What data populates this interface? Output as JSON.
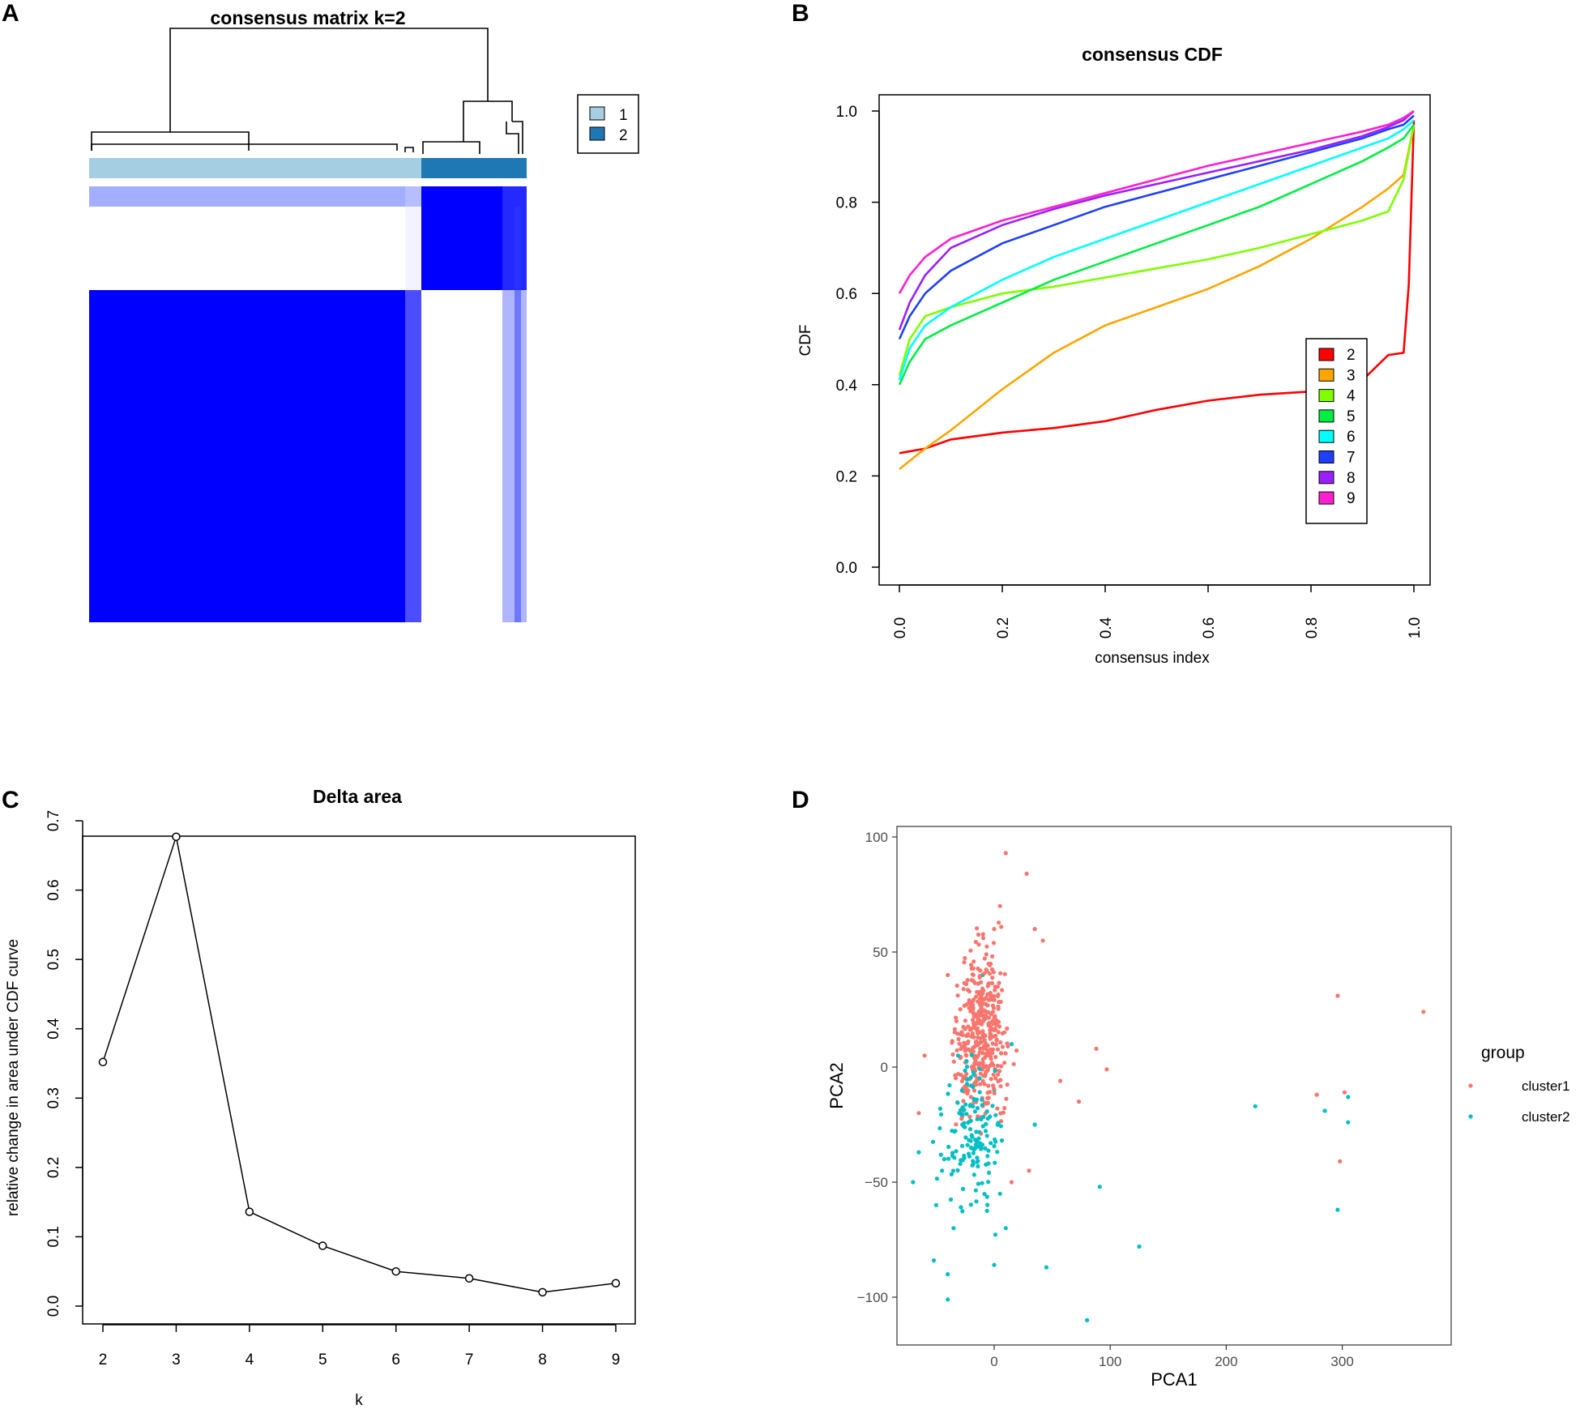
{
  "panels": {
    "A": {
      "letter": "A",
      "title": "consensus matrix k=2",
      "legend": [
        "1",
        "2"
      ],
      "colors": {
        "cluster1": "#a6cee3",
        "cluster2": "#1f78b4",
        "high": "#0000ff",
        "low": "#ffffff"
      }
    },
    "B": {
      "letter": "B"
    },
    "C": {
      "letter": "C"
    },
    "D": {
      "letter": "D"
    }
  },
  "chart_data": [
    {
      "id": "A",
      "type": "heatmap",
      "title": "consensus matrix k=2",
      "legend": [
        {
          "label": "1",
          "color": "#a6cee3"
        },
        {
          "label": "2",
          "color": "#1f78b4"
        }
      ],
      "clusters": [
        {
          "name": "1",
          "fraction": 0.76
        },
        {
          "name": "2",
          "fraction": 0.24
        }
      ],
      "consensus_values": [
        [
          1,
          0
        ],
        [
          0,
          1
        ]
      ]
    },
    {
      "id": "B",
      "type": "line",
      "title": "consensus CDF",
      "xlabel": "consensus index",
      "ylabel": "CDF",
      "xlim": [
        0,
        1
      ],
      "ylim": [
        0,
        1
      ],
      "xticks": [
        "0.0",
        "0.2",
        "0.4",
        "0.6",
        "0.8",
        "1.0"
      ],
      "yticks": [
        "0.0",
        "0.2",
        "0.4",
        "0.6",
        "0.8",
        "1.0"
      ],
      "legend_position": "bottom-right",
      "series": [
        {
          "name": "2",
          "color": "#ff0000",
          "x": [
            0,
            0.05,
            0.1,
            0.2,
            0.3,
            0.4,
            0.5,
            0.6,
            0.7,
            0.8,
            0.9,
            0.95,
            0.98,
            0.99,
            1.0
          ],
          "y": [
            0.25,
            0.26,
            0.28,
            0.295,
            0.305,
            0.32,
            0.345,
            0.365,
            0.378,
            0.385,
            0.41,
            0.465,
            0.47,
            0.62,
            0.98
          ]
        },
        {
          "name": "3",
          "color": "#ffa500",
          "x": [
            0,
            0.05,
            0.1,
            0.2,
            0.3,
            0.4,
            0.5,
            0.6,
            0.7,
            0.8,
            0.9,
            0.95,
            0.98,
            1.0
          ],
          "y": [
            0.215,
            0.26,
            0.3,
            0.39,
            0.47,
            0.53,
            0.57,
            0.61,
            0.66,
            0.72,
            0.79,
            0.83,
            0.86,
            0.97
          ]
        },
        {
          "name": "4",
          "color": "#7fff00",
          "x": [
            0,
            0.02,
            0.05,
            0.1,
            0.2,
            0.3,
            0.4,
            0.5,
            0.6,
            0.7,
            0.8,
            0.9,
            0.95,
            0.98,
            1.0
          ],
          "y": [
            0.42,
            0.5,
            0.55,
            0.57,
            0.6,
            0.615,
            0.635,
            0.655,
            0.675,
            0.7,
            0.73,
            0.76,
            0.78,
            0.85,
            0.97
          ]
        },
        {
          "name": "5",
          "color": "#00ee44",
          "x": [
            0,
            0.02,
            0.05,
            0.1,
            0.2,
            0.3,
            0.4,
            0.5,
            0.6,
            0.7,
            0.8,
            0.9,
            0.95,
            0.98,
            1.0
          ],
          "y": [
            0.4,
            0.45,
            0.5,
            0.53,
            0.58,
            0.63,
            0.67,
            0.71,
            0.75,
            0.79,
            0.84,
            0.89,
            0.92,
            0.94,
            0.97
          ]
        },
        {
          "name": "6",
          "color": "#00ffff",
          "x": [
            0,
            0.02,
            0.05,
            0.1,
            0.2,
            0.3,
            0.4,
            0.5,
            0.6,
            0.7,
            0.8,
            0.9,
            0.95,
            0.98,
            1.0
          ],
          "y": [
            0.41,
            0.48,
            0.53,
            0.57,
            0.63,
            0.68,
            0.72,
            0.76,
            0.8,
            0.84,
            0.88,
            0.92,
            0.94,
            0.96,
            0.98
          ]
        },
        {
          "name": "7",
          "color": "#1f3fff",
          "x": [
            0,
            0.02,
            0.05,
            0.1,
            0.2,
            0.3,
            0.4,
            0.5,
            0.6,
            0.7,
            0.8,
            0.9,
            0.95,
            0.98,
            1.0
          ],
          "y": [
            0.5,
            0.55,
            0.6,
            0.65,
            0.71,
            0.75,
            0.79,
            0.82,
            0.85,
            0.88,
            0.91,
            0.94,
            0.96,
            0.97,
            0.99
          ]
        },
        {
          "name": "8",
          "color": "#9a1fff",
          "x": [
            0,
            0.02,
            0.05,
            0.1,
            0.2,
            0.3,
            0.4,
            0.5,
            0.6,
            0.7,
            0.8,
            0.9,
            0.95,
            0.98,
            1.0
          ],
          "y": [
            0.52,
            0.58,
            0.64,
            0.7,
            0.75,
            0.785,
            0.815,
            0.84,
            0.865,
            0.89,
            0.915,
            0.945,
            0.965,
            0.98,
            1.0
          ]
        },
        {
          "name": "9",
          "color": "#ff1fcf",
          "x": [
            0,
            0.02,
            0.05,
            0.1,
            0.2,
            0.3,
            0.4,
            0.5,
            0.6,
            0.7,
            0.8,
            0.9,
            0.95,
            0.98,
            1.0
          ],
          "y": [
            0.6,
            0.64,
            0.68,
            0.72,
            0.76,
            0.79,
            0.82,
            0.85,
            0.88,
            0.905,
            0.93,
            0.955,
            0.97,
            0.985,
            1.0
          ]
        }
      ]
    },
    {
      "id": "C",
      "type": "line",
      "title": "Delta area",
      "xlabel": "k",
      "ylabel": "relative change in area under CDF curve",
      "xlim": [
        2,
        9
      ],
      "ylim": [
        0,
        0.7
      ],
      "xticks": [
        "2",
        "3",
        "4",
        "5",
        "6",
        "7",
        "8",
        "9"
      ],
      "yticks": [
        "0.0",
        "0.1",
        "0.2",
        "0.3",
        "0.4",
        "0.5",
        "0.6",
        "0.7"
      ],
      "x": [
        2,
        3,
        4,
        5,
        6,
        7,
        8,
        9
      ],
      "y": [
        0.352,
        0.677,
        0.136,
        0.087,
        0.05,
        0.04,
        0.02,
        0.033
      ]
    },
    {
      "id": "D",
      "type": "scatter",
      "xlabel": "PCA1",
      "ylabel": "PCA2",
      "xlim": [
        -85,
        395
      ],
      "ylim": [
        -118,
        103
      ],
      "xticks": [
        "0",
        "100",
        "200",
        "300"
      ],
      "yticks": [
        "100",
        "50",
        "0",
        "−50",
        "−100"
      ],
      "legend_title": "group",
      "series": [
        {
          "name": "cluster1",
          "color": "#f8766d",
          "points": [
            [
              296,
              31
            ],
            [
              370,
              24
            ],
            [
              298,
              -41
            ],
            [
              278,
              -12
            ],
            [
              302,
              -11
            ],
            [
              97,
              -1
            ],
            [
              88,
              8
            ],
            [
              73,
              -15
            ],
            [
              57,
              -6
            ],
            [
              10,
              93
            ],
            [
              28,
              84
            ],
            [
              -40,
              40
            ],
            [
              -60,
              5
            ],
            [
              -65,
              -20
            ],
            [
              35,
              60
            ],
            [
              42,
              55
            ],
            [
              30,
              -45
            ],
            [
              15,
              -50
            ],
            [
              5,
              70
            ],
            [
              0,
              60
            ]
          ]
        },
        {
          "name": "cluster2",
          "color": "#00bfc4",
          "points": [
            [
              225,
              -17
            ],
            [
              305,
              -13
            ],
            [
              285,
              -19
            ],
            [
              305,
              -24
            ],
            [
              296,
              -62
            ],
            [
              125,
              -78
            ],
            [
              91,
              -52
            ],
            [
              80,
              -110
            ],
            [
              45,
              -87
            ],
            [
              0,
              -86
            ],
            [
              -40,
              -101
            ],
            [
              -52,
              -84
            ],
            [
              -40,
              -90
            ],
            [
              -65,
              -37
            ],
            [
              -50,
              -60
            ],
            [
              -35,
              -70
            ],
            [
              -70,
              -50
            ],
            [
              -45,
              -45
            ],
            [
              -20,
              -35
            ],
            [
              10,
              -70
            ],
            [
              -30,
              -20
            ],
            [
              0,
              -10
            ],
            [
              15,
              10
            ],
            [
              -10,
              40
            ],
            [
              35,
              -25
            ]
          ]
        }
      ]
    }
  ]
}
